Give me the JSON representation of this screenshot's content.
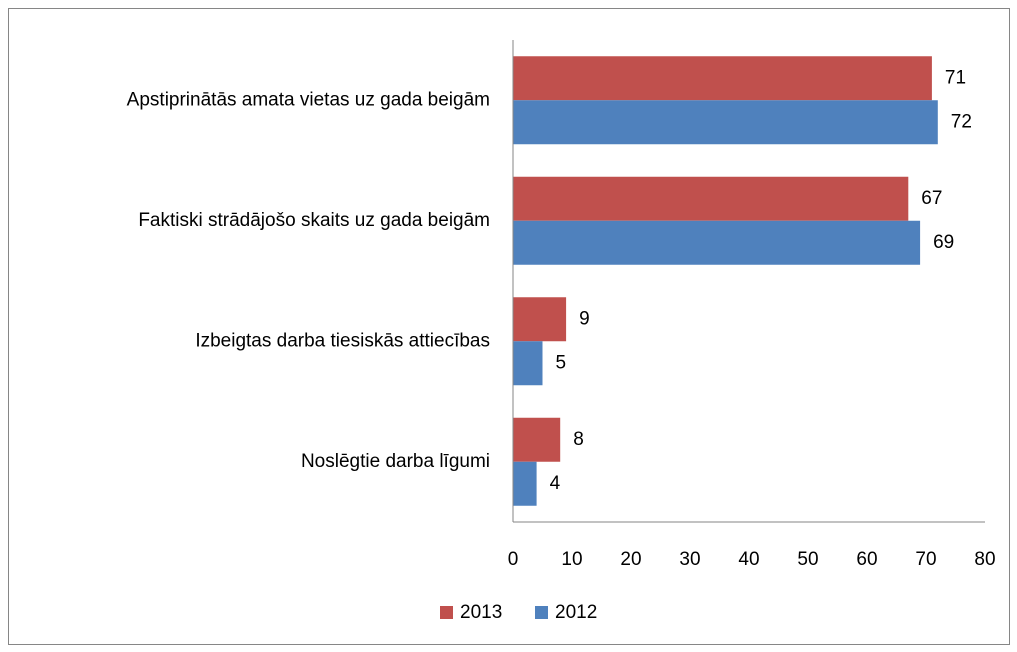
{
  "chart_data": {
    "type": "bar",
    "orientation": "horizontal",
    "categories": [
      "Apstiprinātās amata vietas uz gada beigām",
      "Faktiski strādājošo skaits uz gada beigām",
      "Izbeigtas darba tiesiskās attiecības",
      "Noslēgtie darba līgumi"
    ],
    "series": [
      {
        "name": "2013",
        "color": "#c0504d",
        "values": [
          71,
          67,
          9,
          8
        ]
      },
      {
        "name": "2012",
        "color": "#4f81bd",
        "values": [
          72,
          69,
          5,
          4
        ]
      }
    ],
    "xlim": [
      0,
      80
    ],
    "xticks": [
      0,
      10,
      20,
      30,
      40,
      50,
      60,
      70,
      80
    ],
    "grid": false,
    "legend": "bottom"
  }
}
